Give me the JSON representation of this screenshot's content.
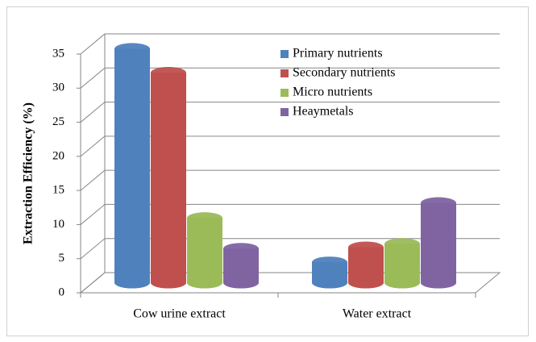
{
  "chart_data": {
    "type": "bar3d-cylinder",
    "y_label": "Extraction Efficiency (%)",
    "categories": [
      "Cow urine extract",
      "Water extract"
    ],
    "series": [
      {
        "name": "Primary nutrients",
        "color": "#4f81bd",
        "values": [
          34.3,
          3
        ]
      },
      {
        "name": "Secondary nutrients",
        "color": "#c0504d",
        "values": [
          30.8,
          5.2
        ]
      },
      {
        "name": "Micro nutrients",
        "color": "#9bbb59",
        "values": [
          9.5,
          5.7
        ]
      },
      {
        "name": "Heaymetals",
        "color": "#8064a2",
        "values": [
          5,
          11.7
        ]
      }
    ],
    "ylim": [
      0,
      35
    ],
    "yticks": [
      0,
      5,
      10,
      15,
      20,
      25,
      30,
      35
    ],
    "grid": true,
    "legend": "top-right"
  }
}
